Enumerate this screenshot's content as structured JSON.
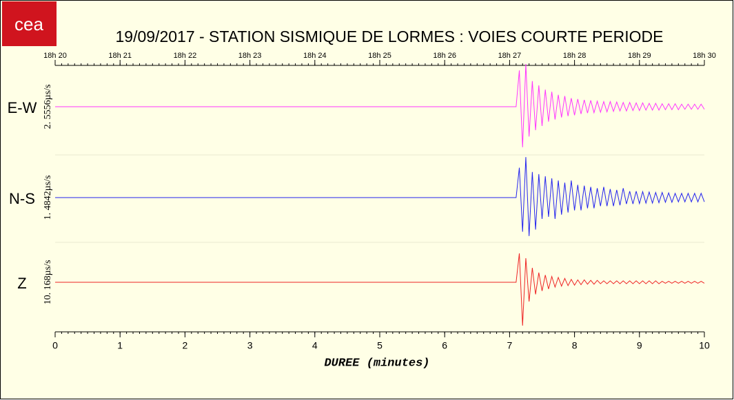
{
  "chart_data": {
    "type": "line",
    "logo": "cea",
    "title": "19/09/2017  -  STATION SISMIQUE DE LORMES : VOIES COURTE PERIODE",
    "xlabel": "DUREE (minutes)",
    "xlim": [
      0,
      10
    ],
    "xticks": [
      0,
      1,
      2,
      3,
      4,
      5,
      6,
      7,
      8,
      9,
      10
    ],
    "top_xticks": [
      {
        "value": 0,
        "label": "18h 20"
      },
      {
        "value": 1,
        "label": "18h 21"
      },
      {
        "value": 2,
        "label": "18h 22"
      },
      {
        "value": 3,
        "label": "18h 23"
      },
      {
        "value": 4,
        "label": "18h 24"
      },
      {
        "value": 5,
        "label": "18h 25"
      },
      {
        "value": 6,
        "label": "18h 26"
      },
      {
        "value": 7,
        "label": "18h 27"
      },
      {
        "value": 8,
        "label": "18h 28"
      },
      {
        "value": 9,
        "label": "18h 29"
      },
      {
        "value": 10,
        "label": "18h 30"
      }
    ],
    "ylim": [
      -1,
      1
    ],
    "x": [
      0,
      7.1,
      7.15,
      7.2,
      7.25,
      7.3,
      7.35,
      7.4,
      7.45,
      7.5,
      7.55,
      7.6,
      7.65,
      7.7,
      7.75,
      7.8,
      7.85,
      7.9,
      7.95,
      8,
      8.05,
      8.1,
      8.15,
      8.2,
      8.25,
      8.3,
      8.35,
      8.4,
      8.45,
      8.5,
      8.55,
      8.6,
      8.65,
      8.7,
      8.75,
      8.8,
      8.85,
      8.9,
      8.95,
      9,
      9.05,
      9.1,
      9.15,
      9.2,
      9.25,
      9.3,
      9.35,
      9.4,
      9.45,
      9.5,
      9.55,
      9.6,
      9.65,
      9.7,
      9.75,
      9.8,
      9.85,
      9.9,
      9.95,
      10
    ],
    "series": [
      {
        "name": "E-W",
        "scale": "2. 5556µs/s",
        "color": "#ff33ff",
        "values": [
          0,
          0,
          0.85,
          -0.95,
          1.0,
          -0.7,
          0.6,
          -0.55,
          0.5,
          -0.45,
          0.4,
          -0.35,
          0.35,
          -0.3,
          0.28,
          -0.25,
          0.25,
          -0.22,
          0.2,
          -0.2,
          0.18,
          -0.17,
          0.16,
          -0.15,
          0.15,
          -0.14,
          0.13,
          -0.13,
          0.12,
          -0.12,
          0.12,
          -0.11,
          0.11,
          -0.1,
          0.1,
          -0.1,
          0.1,
          -0.09,
          0.09,
          -0.09,
          0.09,
          -0.08,
          0.08,
          -0.08,
          0.08,
          -0.08,
          0.07,
          -0.07,
          0.07,
          -0.07,
          0.07,
          -0.07,
          0.06,
          -0.06,
          0.06,
          -0.06,
          0.06,
          -0.06,
          0.06,
          -0.06
        ]
      },
      {
        "name": "N-S",
        "scale": "1. 4842µs/s",
        "color": "#2222ee",
        "values": [
          0,
          0,
          0.7,
          -0.8,
          0.95,
          -0.9,
          0.6,
          -0.75,
          0.55,
          -0.5,
          0.5,
          -0.45,
          0.45,
          -0.5,
          0.4,
          -0.4,
          0.35,
          -0.35,
          0.4,
          -0.3,
          0.3,
          -0.3,
          0.28,
          -0.25,
          0.25,
          -0.25,
          0.22,
          -0.2,
          0.25,
          -0.2,
          0.2,
          -0.2,
          0.18,
          -0.18,
          0.22,
          -0.15,
          0.15,
          -0.15,
          0.15,
          -0.14,
          0.14,
          -0.13,
          0.13,
          -0.13,
          0.12,
          -0.12,
          0.12,
          -0.11,
          0.11,
          -0.11,
          0.1,
          -0.1,
          0.1,
          -0.1,
          0.1,
          -0.1,
          0.1,
          -0.1,
          0.1,
          -0.1
        ]
      },
      {
        "name": "Z",
        "scale": "10. 168µs/s",
        "color": "#ee2222",
        "values": [
          0,
          0,
          0.6,
          -0.9,
          0.5,
          -0.4,
          0.3,
          -0.25,
          0.2,
          -0.18,
          0.15,
          -0.14,
          0.12,
          -0.1,
          0.1,
          -0.08,
          0.08,
          -0.07,
          0.06,
          -0.06,
          0.05,
          -0.05,
          0.05,
          -0.04,
          0.04,
          -0.04,
          0.04,
          -0.03,
          0.03,
          -0.03,
          0.03,
          -0.03,
          0.03,
          -0.03,
          0.03,
          -0.03,
          0.03,
          -0.03,
          0.03,
          -0.03,
          0.03,
          -0.03,
          0.03,
          -0.03,
          0.03,
          -0.03,
          0.02,
          -0.02,
          0.02,
          -0.02,
          0.02,
          -0.02,
          0.02,
          -0.02,
          0.02,
          -0.02,
          0.02,
          -0.02,
          0.02,
          -0.02
        ]
      }
    ]
  }
}
